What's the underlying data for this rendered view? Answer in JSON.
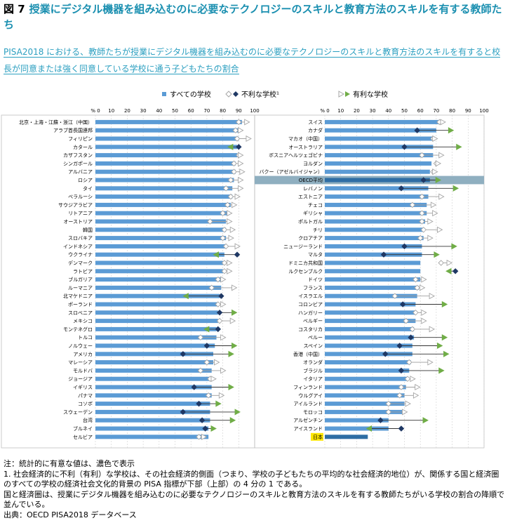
{
  "header": {
    "figure_label": "図 7",
    "title": "授業にデジタル機器を組み込むのに必要なテクノロジーのスキルと教育方法のスキルを有する教師たち",
    "subtitle": "PISA2018 における、教師たちが授業にデジタル機器を組み込むのに必要なテクノロジーのスキルと教育方法のスキルを有すると校長が同意または強く同意している学校に通う子どもたちの割合"
  },
  "legend": {
    "all": "すべての学校",
    "disadv": "不利な学校¹",
    "adv": "有利な学校"
  },
  "chart_data": {
    "type": "bar",
    "axis_unit": "%",
    "ticks": [
      0,
      10,
      20,
      30,
      40,
      50,
      60,
      70,
      80,
      90,
      100
    ],
    "xlim": [
      0,
      100
    ],
    "colors": {
      "bar": "#5b9bd5",
      "bar_highlight": "#2e6da4",
      "disadv": "#1f3864",
      "adv": "#70ad47",
      "hollow_stroke": "#a6a6a6",
      "oecd_band": "#8fafc0",
      "japan_highlight": "#ffe600"
    },
    "panels": [
      {
        "rows": [
          {
            "name": "北京・上海・江蘇・浙江（中国）",
            "all": 92,
            "disadv": 90,
            "adv": 95,
            "sig": false
          },
          {
            "name": "アラブ首長国連邦",
            "all": 90,
            "disadv": 88,
            "adv": 91,
            "sig": false
          },
          {
            "name": "フィリピン",
            "all": 90,
            "disadv": 89,
            "adv": 96,
            "sig": false
          },
          {
            "name": "カタール",
            "all": 89,
            "disadv": 90,
            "adv": 85,
            "sig": true
          },
          {
            "name": "カザフスタン",
            "all": 89,
            "disadv": 90,
            "adv": 91,
            "sig": false
          },
          {
            "name": "シンガポール",
            "all": 88,
            "disadv": 87,
            "adv": 91,
            "sig": false
          },
          {
            "name": "アルバニア",
            "all": 88,
            "disadv": 87,
            "adv": 92,
            "sig": false
          },
          {
            "name": "ロシア",
            "all": 87,
            "disadv": 85,
            "adv": 91,
            "sig": false
          },
          {
            "name": "タイ",
            "all": 86,
            "disadv": 82,
            "adv": 91,
            "sig": false
          },
          {
            "name": "ベラルーシ",
            "all": 86,
            "disadv": 85,
            "adv": 89,
            "sig": false
          },
          {
            "name": "サウジアラビア",
            "all": 85,
            "disadv": 83,
            "adv": 87,
            "sig": false
          },
          {
            "name": "リトアニア",
            "all": 84,
            "disadv": 80,
            "adv": 84,
            "sig": false
          },
          {
            "name": "オーストリア",
            "all": 82,
            "disadv": 72,
            "adv": 84,
            "sig": false
          },
          {
            "name": "韓国",
            "all": 82,
            "disadv": 81,
            "adv": 86,
            "sig": false
          },
          {
            "name": "スロバキア",
            "all": 82,
            "disadv": 80,
            "adv": 85,
            "sig": false
          },
          {
            "name": "インドネシア",
            "all": 82,
            "disadv": 82,
            "adv": 89,
            "sig": false
          },
          {
            "name": "ウクライナ",
            "all": 81,
            "disadv": 89,
            "adv": 76,
            "sig": true
          },
          {
            "name": "デンマーク",
            "all": 80,
            "disadv": 81,
            "adv": 84,
            "sig": false
          },
          {
            "name": "ラトビア",
            "all": 80,
            "disadv": 81,
            "adv": 84,
            "sig": false
          },
          {
            "name": "ブルガリア",
            "all": 79,
            "disadv": 77,
            "adv": 80,
            "sig": false
          },
          {
            "name": "ルーマニア",
            "all": 79,
            "disadv": 73,
            "adv": 87,
            "sig": false
          },
          {
            "name": "北マケドニア",
            "all": 78,
            "disadv": 79,
            "adv": 57,
            "sig": true
          },
          {
            "name": "ポーランド",
            "all": 77,
            "disadv": 77,
            "adv": 80,
            "sig": false
          },
          {
            "name": "スロベニア",
            "all": 77,
            "disadv": 78,
            "adv": 87,
            "sig": true
          },
          {
            "name": "メキシコ",
            "all": 77,
            "disadv": 78,
            "adv": 86,
            "sig": false
          },
          {
            "name": "モンテネグロ",
            "all": 76,
            "disadv": 77,
            "adv": 70,
            "sig": true
          },
          {
            "name": "トルコ",
            "all": 76,
            "disadv": 66,
            "adv": 80,
            "sig": false
          },
          {
            "name": "ノルウェー",
            "all": 75,
            "disadv": 70,
            "adv": 87,
            "sig": true
          },
          {
            "name": "アメリカ",
            "all": 74,
            "disadv": 55,
            "adv": 85,
            "sig": true
          },
          {
            "name": "マレーシア",
            "all": 74,
            "disadv": 70,
            "adv": 76,
            "sig": false
          },
          {
            "name": "モルドバ",
            "all": 73,
            "disadv": 66,
            "adv": 80,
            "sig": false
          },
          {
            "name": "ジョージア",
            "all": 73,
            "disadv": 72,
            "adv": 74,
            "sig": false
          },
          {
            "name": "イギリス",
            "all": 73,
            "disadv": 62,
            "adv": 85,
            "sig": true
          },
          {
            "name": "パナマ",
            "all": 73,
            "disadv": 71,
            "adv": 79,
            "sig": false
          },
          {
            "name": "コソボ",
            "all": 72,
            "disadv": 65,
            "adv": 77,
            "sig": true
          },
          {
            "name": "スウェーデン",
            "all": 72,
            "disadv": 55,
            "adv": 89,
            "sig": true
          },
          {
            "name": "台湾",
            "all": 72,
            "disadv": 67,
            "adv": 86,
            "sig": true
          },
          {
            "name": "ブルネイ",
            "all": 71,
            "disadv": 69,
            "adv": 74,
            "sig": true
          },
          {
            "name": "セルビア",
            "all": 71,
            "disadv": 65,
            "adv": 68,
            "sig": false
          }
        ]
      },
      {
        "rows": [
          {
            "name": "スイス",
            "all": 72,
            "disadv": 72,
            "adv": 74,
            "sig": false
          },
          {
            "name": "カナダ",
            "all": 70,
            "disadv": 58,
            "adv": 79,
            "sig": true
          },
          {
            "name": "マカオ（中国）",
            "all": 69,
            "disadv": 68,
            "adv": 69,
            "sig": false
          },
          {
            "name": "オーストラリア",
            "all": 68,
            "disadv": 50,
            "adv": 84,
            "sig": true
          },
          {
            "name": "ボスニアヘルツェゴビナ",
            "all": 68,
            "disadv": 61,
            "adv": 73,
            "sig": false
          },
          {
            "name": "ヨルダン",
            "all": 67,
            "disadv": 70,
            "adv": 71,
            "sig": false
          },
          {
            "name": "バクー（アゼルバイジャン）",
            "all": 66,
            "disadv": 68,
            "adv": 69,
            "sig": false
          },
          {
            "name": "OECD平均",
            "all": 66,
            "disadv": 62,
            "adv": 71,
            "sig": true,
            "oecd": true
          },
          {
            "name": "レバノン",
            "all": 65,
            "disadv": 48,
            "adv": 82,
            "sig": true
          },
          {
            "name": "エストニア",
            "all": 65,
            "disadv": 61,
            "adv": 73,
            "sig": false
          },
          {
            "name": "チェコ",
            "all": 64,
            "disadv": 55,
            "adv": 68,
            "sig": false
          },
          {
            "name": "ギリシャ",
            "all": 64,
            "disadv": 61,
            "adv": 69,
            "sig": false
          },
          {
            "name": "ポルトガル",
            "all": 63,
            "disadv": 61,
            "adv": 66,
            "sig": false
          },
          {
            "name": "チリ",
            "all": 62,
            "disadv": 62,
            "adv": 72,
            "sig": false
          },
          {
            "name": "クロアチア",
            "all": 62,
            "disadv": 60,
            "adv": 66,
            "sig": false
          },
          {
            "name": "ニュージーランド",
            "all": 61,
            "disadv": 50,
            "adv": 81,
            "sig": true
          },
          {
            "name": "マルタ",
            "all": 61,
            "disadv": 37,
            "adv": 70,
            "sig": true
          },
          {
            "name": "ドミニカ共和国",
            "all": 60,
            "disadv": 73,
            "adv": 78,
            "sig": false
          },
          {
            "name": "ルクセンブルク",
            "all": 60,
            "disadv": 82,
            "adv": 78,
            "sig": true
          },
          {
            "name": "ドイツ",
            "all": 60,
            "disadv": 57,
            "adv": 62,
            "sig": false
          },
          {
            "name": "フランス",
            "all": 59,
            "disadv": 58,
            "adv": 61,
            "sig": false
          },
          {
            "name": "イスラエル",
            "all": 58,
            "disadv": 44,
            "adv": 67,
            "sig": false
          },
          {
            "name": "コロンビア",
            "all": 57,
            "disadv": 49,
            "adv": 75,
            "sig": true
          },
          {
            "name": "ハンガリー",
            "all": 57,
            "disadv": 57,
            "adv": 62,
            "sig": false
          },
          {
            "name": "ベルギー",
            "all": 57,
            "disadv": 51,
            "adv": 62,
            "sig": false
          },
          {
            "name": "コスタリカ",
            "all": 56,
            "disadv": 55,
            "adv": 67,
            "sig": false
          },
          {
            "name": "ペルー",
            "all": 56,
            "disadv": 54,
            "adv": 75,
            "sig": true
          },
          {
            "name": "スペイン",
            "all": 55,
            "disadv": 47,
            "adv": 72,
            "sig": true
          },
          {
            "name": "香港（中国）",
            "all": 55,
            "disadv": 38,
            "adv": 76,
            "sig": true
          },
          {
            "name": "オランダ",
            "all": 54,
            "disadv": 53,
            "adv": 66,
            "sig": false
          },
          {
            "name": "ブラジル",
            "all": 53,
            "disadv": 48,
            "adv": 73,
            "sig": true
          },
          {
            "name": "イタリア",
            "all": 52,
            "disadv": 52,
            "adv": 55,
            "sig": false
          },
          {
            "name": "フィンランド",
            "all": 51,
            "disadv": 48,
            "adv": 58,
            "sig": false
          },
          {
            "name": "ウルグアイ",
            "all": 50,
            "disadv": 47,
            "adv": 57,
            "sig": false
          },
          {
            "name": "アイルランド",
            "all": 50,
            "disadv": 40,
            "adv": 52,
            "sig": false
          },
          {
            "name": "モロッコ",
            "all": 50,
            "disadv": 40,
            "adv": 50,
            "sig": false
          },
          {
            "name": "アルゼンチン",
            "all": 40,
            "disadv": 35,
            "adv": 63,
            "sig": true
          },
          {
            "name": "アイスランド",
            "all": 40,
            "disadv": 48,
            "adv": 28,
            "sig": true
          },
          {
            "name": "日本",
            "all": 27,
            "disadv": null,
            "adv": null,
            "sig": false,
            "japan": true
          }
        ]
      }
    ]
  },
  "notes": {
    "line1": "注：統計的に有意な値は、濃色で表示",
    "line2": "1. 社会経済的に不利（有利）な学校は、その社会経済的側面（つまり、学校の子どもたちの平均的な社会経済的地位）が、関係する国と経済圏のすべての学校の経済社会文化的背景の PISA 指標が下部（上部）の 4 分の 1 である。",
    "line3": "国と経済圏は、授業にデジタル機器を組み込むのに必要なテクノロジーのスキルと教育方法のスキルを有する教師たちがいる学校の割合の降順で並んでいる。",
    "line4": "出典：OECD PISA2018 データベース"
  }
}
